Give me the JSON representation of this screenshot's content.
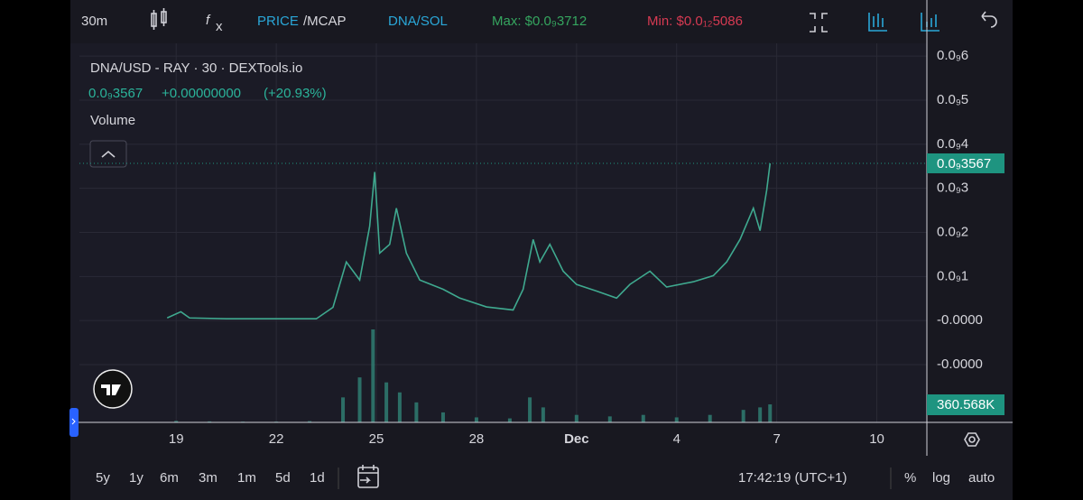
{
  "toolbar": {
    "interval": "30m",
    "price": "PRICE",
    "mcap": "/MCAP",
    "pair": "DNA/SOL",
    "max": "Max: $0.0₉3712",
    "min": "Min: $0.0₁₂5086"
  },
  "chart_data": {
    "type": "line",
    "title": "DNA/USD - RAY · 30 · DEXTools.io",
    "legend": [
      "0.0₉3567",
      "+0.00000000",
      "(+20.93%)"
    ],
    "color": "#3fa98f",
    "x": [
      18.73,
      19.14,
      19.4,
      20.5,
      21.8,
      23.2,
      23.7,
      24.1,
      24.5,
      24.8,
      24.95,
      25.1,
      25.4,
      25.6,
      25.9,
      26.3,
      27.0,
      27.5,
      28.3,
      29.1,
      29.4,
      29.7,
      29.9,
      30.2,
      30.6,
      31.0,
      31.6,
      32.2,
      32.6,
      33.2,
      33.7,
      34.5,
      35.1,
      35.5,
      35.9,
      36.3,
      36.5,
      36.7,
      36.8
    ],
    "values": [
      6e-12,
      2e-11,
      6e-12,
      4e-12,
      4e-12,
      4e-12,
      3e-11,
      1.33e-10,
      9.2e-11,
      2.14e-10,
      3.37e-10,
      1.53e-10,
      1.73e-10,
      2.55e-10,
      1.53e-10,
      9.2e-11,
      7.1e-11,
      5.1e-11,
      3.1e-11,
      2.4e-11,
      7.1e-11,
      1.84e-10,
      1.33e-10,
      1.73e-10,
      1.12e-10,
      8.2e-11,
      6.7e-11,
      5.1e-11,
      8.2e-11,
      1.12e-10,
      7.6e-11,
      8.8e-11,
      1.02e-10,
      1.33e-10,
      1.84e-10,
      2.55e-10,
      2.04e-10,
      2.96e-10,
      3.567e-10
    ],
    "value_labels": [
      null,
      null,
      null,
      null,
      null,
      null,
      null,
      null,
      null,
      null,
      null,
      null,
      null,
      null,
      null,
      null,
      null,
      null,
      null,
      null,
      null,
      null,
      null,
      null,
      null,
      null,
      null,
      null,
      null,
      null,
      null,
      null,
      null,
      null,
      null,
      null,
      null,
      null,
      "0.0₉3567"
    ],
    "xlim": [
      16.1,
      41.5
    ],
    "xticks": [
      19,
      22,
      25,
      28,
      {
        "value": 31,
        "label": "Dec"
      },
      {
        "value": 34,
        "label": "4"
      },
      {
        "value": 37,
        "label": "7"
      },
      {
        "value": 40,
        "label": "10"
      }
    ],
    "ylim": [
      -2.31e-10,
      6.29e-10
    ],
    "yticks": [
      {
        "value": 6e-10,
        "label": "0.0₉6"
      },
      {
        "value": 5e-10,
        "label": "0.0₉5"
      },
      {
        "value": 4e-10,
        "label": "0.0₉4"
      },
      {
        "value": 3e-10,
        "label": "0.0₉3"
      },
      {
        "value": 2e-10,
        "label": "0.0₉2"
      },
      {
        "value": 1e-10,
        "label": "0.0₉1"
      },
      {
        "value": 0,
        "label": "-0.0000"
      },
      {
        "value": -1e-10,
        "label": "-0.0000"
      }
    ],
    "grid": true,
    "volume": {
      "label": "Volume",
      "color": "#2f7d72",
      "x": [
        19.0,
        20.0,
        21.0,
        22.0,
        23.0,
        24.0,
        24.5,
        24.9,
        25.3,
        25.7,
        26.2,
        27.0,
        28.0,
        29.0,
        29.6,
        30.0,
        31.0,
        32.0,
        33.0,
        34.0,
        35.0,
        36.0,
        36.5,
        36.8
      ],
      "values": [
        30000,
        20000,
        15000,
        15000,
        25000,
        500000,
        900000,
        1860000,
        800000,
        600000,
        400000,
        200000,
        100000,
        80000,
        500000,
        300000,
        150000,
        120000,
        150000,
        100000,
        150000,
        250000,
        300000,
        360568
      ],
      "value_labels": [
        null,
        null,
        null,
        null,
        null,
        null,
        null,
        null,
        null,
        null,
        null,
        null,
        null,
        null,
        null,
        null,
        null,
        null,
        null,
        null,
        null,
        null,
        null,
        "360.568K"
      ]
    }
  },
  "range_buttons": [
    "5y",
    "1y",
    "6m",
    "3m",
    "1m",
    "5d",
    "1d"
  ],
  "status": {
    "time": "17:42:19 (UTC+1)",
    "percent": "%",
    "log": "log",
    "auto": "auto"
  }
}
